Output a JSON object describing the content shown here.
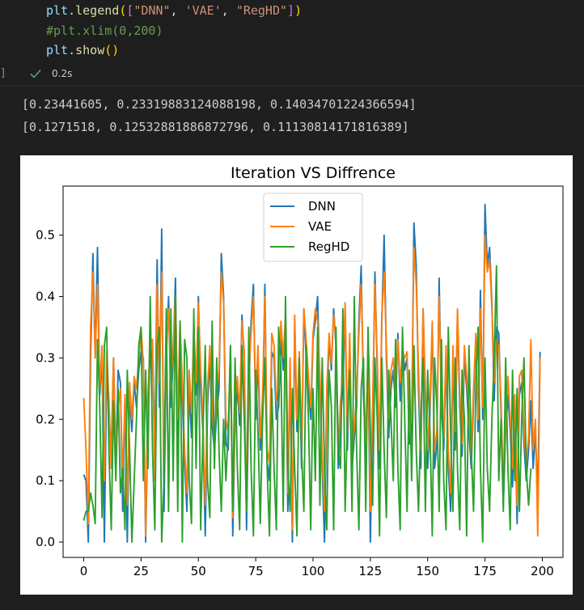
{
  "code": {
    "line1": {
      "obj": "plt",
      "dot": ".",
      "fn": "legend",
      "open_p": "(",
      "open_b": "[",
      "s1": "\"DNN\"",
      "c1": ", ",
      "s2": "'VAE'",
      "c2": ", ",
      "s3": "\"RegHD\"",
      "close_b": "]",
      "close_p": ")"
    },
    "line2": "#plt.xlim(0,200)",
    "line3": {
      "obj": "plt",
      "dot": ".",
      "fn": "show",
      "parens": "()"
    }
  },
  "cell_status": {
    "bracket": "]",
    "time": "0.2s"
  },
  "output": {
    "line1": "[0.23441605, 0.23319883124088198, 0.14034701224366594]",
    "line2": "[0.1271518, 0.12532881886872796, 0.11130814171816389]"
  },
  "chart_data": {
    "type": "line",
    "title": "Iteration VS Diffrence",
    "xlabel": "",
    "ylabel": "",
    "xlim": [
      -9,
      209
    ],
    "ylim": [
      -0.025,
      0.58
    ],
    "xticks": [
      0,
      25,
      50,
      75,
      100,
      125,
      150,
      175,
      200
    ],
    "yticks": [
      0.0,
      0.1,
      0.2,
      0.3,
      0.4,
      0.5
    ],
    "ytick_labels": [
      "0.0",
      "0.1",
      "0.2",
      "0.3",
      "0.4",
      "0.5"
    ],
    "legend_position": "upper center",
    "grid": false,
    "series": [
      {
        "name": "DNN",
        "color": "#1f77b4",
        "values": [
          0.11,
          0.1,
          0.0,
          0.3,
          0.47,
          0.3,
          0.48,
          0.24,
          0.3,
          0.0,
          0.28,
          0.2,
          0.15,
          0.3,
          0.12,
          0.28,
          0.26,
          0.05,
          0.24,
          0.0,
          0.24,
          0.18,
          0.26,
          0.22,
          0.28,
          0.31,
          0.3,
          0.0,
          0.2,
          0.32,
          0.3,
          0.15,
          0.46,
          0.22,
          0.51,
          0.05,
          0.3,
          0.4,
          0.22,
          0.3,
          0.43,
          0.15,
          0.35,
          0.23,
          0.13,
          0.05,
          0.25,
          0.17,
          0.35,
          0.24,
          0.4,
          0.25,
          0.18,
          0.01,
          0.22,
          0.3,
          0.19,
          0.15,
          0.21,
          0.25,
          0.47,
          0.4,
          0.16,
          0.15,
          0.32,
          0.01,
          0.2,
          0.25,
          0.19,
          0.37,
          0.3,
          0.02,
          0.25,
          0.36,
          0.42,
          0.2,
          0.3,
          0.15,
          0.2,
          0.42,
          0.13,
          0.1,
          0.31,
          0.3,
          0.2,
          0.22,
          0.33,
          0.28,
          0.36,
          0.05,
          0.28,
          0.0,
          0.35,
          0.18,
          0.29,
          0.12,
          0.38,
          0.3,
          0.25,
          0.2,
          0.33,
          0.36,
          0.4,
          0.25,
          0.12,
          0.0,
          0.22,
          0.33,
          0.28,
          0.38,
          0.32,
          0.12,
          0.2,
          0.25,
          0.38,
          0.15,
          0.32,
          0.12,
          0.17,
          0.22,
          0.36,
          0.45,
          0.24,
          0.14,
          0.3,
          0.0,
          0.2,
          0.44,
          0.28,
          0.12,
          0.36,
          0.5,
          0.3,
          0.17,
          0.25,
          0.28,
          0.22,
          0.34,
          0.23,
          0.32,
          0.28,
          0.3,
          0.16,
          0.18,
          0.52,
          0.45,
          0.25,
          0.12,
          0.38,
          0.23,
          0.12,
          0.21,
          0.35,
          0.12,
          0.16,
          0.43,
          0.22,
          0.15,
          0.3,
          0.12,
          0.05,
          0.3,
          0.15,
          0.37,
          0.22,
          0.14,
          0.3,
          0.25,
          0.18,
          0.12,
          0.23,
          0.33,
          0.18,
          0.41,
          0.2,
          0.55,
          0.45,
          0.48,
          0.39,
          0.23,
          0.35,
          0.34,
          0.21,
          0.06,
          0.18,
          0.24,
          0.18,
          0.09,
          0.22,
          0.03,
          0.24,
          0.26,
          0.16,
          0.1,
          0.15,
          0.23,
          0.12,
          0.18,
          0.07,
          0.31
        ]
      },
      {
        "name": "VAE",
        "color": "#ff7f0e",
        "values": [
          0.235,
          0.15,
          0.03,
          0.35,
          0.44,
          0.3,
          0.42,
          0.25,
          0.32,
          0.1,
          0.31,
          0.23,
          0.12,
          0.3,
          0.15,
          0.22,
          0.25,
          0.1,
          0.24,
          0.06,
          0.26,
          0.2,
          0.27,
          0.25,
          0.3,
          0.35,
          0.29,
          0.01,
          0.24,
          0.33,
          0.33,
          0.1,
          0.42,
          0.26,
          0.44,
          0.12,
          0.32,
          0.38,
          0.25,
          0.32,
          0.4,
          0.2,
          0.36,
          0.26,
          0.15,
          0.08,
          0.28,
          0.21,
          0.35,
          0.26,
          0.39,
          0.28,
          0.2,
          0.06,
          0.25,
          0.32,
          0.22,
          0.16,
          0.24,
          0.28,
          0.44,
          0.39,
          0.2,
          0.18,
          0.3,
          0.04,
          0.22,
          0.27,
          0.21,
          0.36,
          0.31,
          0.05,
          0.28,
          0.34,
          0.4,
          0.23,
          0.32,
          0.17,
          0.24,
          0.4,
          0.15,
          0.13,
          0.34,
          0.32,
          0.23,
          0.25,
          0.36,
          0.3,
          0.37,
          0.08,
          0.3,
          0.02,
          0.37,
          0.2,
          0.31,
          0.15,
          0.38,
          0.33,
          0.27,
          0.22,
          0.34,
          0.38,
          0.36,
          0.27,
          0.14,
          0.05,
          0.25,
          0.34,
          0.29,
          0.37,
          0.33,
          0.15,
          0.23,
          0.27,
          0.39,
          0.18,
          0.34,
          0.14,
          0.19,
          0.24,
          0.34,
          0.42,
          0.27,
          0.16,
          0.32,
          0.05,
          0.23,
          0.42,
          0.3,
          0.15,
          0.37,
          0.44,
          0.32,
          0.2,
          0.28,
          0.3,
          0.24,
          0.33,
          0.26,
          0.31,
          0.3,
          0.31,
          0.18,
          0.2,
          0.48,
          0.42,
          0.28,
          0.15,
          0.38,
          0.25,
          0.15,
          0.23,
          0.36,
          0.15,
          0.18,
          0.4,
          0.24,
          0.17,
          0.32,
          0.15,
          0.08,
          0.32,
          0.18,
          0.38,
          0.24,
          0.16,
          0.32,
          0.27,
          0.21,
          0.14,
          0.25,
          0.34,
          0.2,
          0.38,
          0.22,
          0.5,
          0.44,
          0.46,
          0.38,
          0.26,
          0.33,
          0.32,
          0.23,
          0.08,
          0.2,
          0.27,
          0.2,
          0.12,
          0.24,
          0.06,
          0.27,
          0.28,
          0.18,
          0.13,
          0.17,
          0.33,
          0.15,
          0.2,
          0.01,
          0.3
        ]
      },
      {
        "name": "RegHD",
        "color": "#2ca02c",
        "values": [
          0.035,
          0.05,
          0.05,
          0.08,
          0.06,
          0.03,
          0.33,
          0.22,
          0.04,
          0.32,
          0.35,
          0.15,
          0.02,
          0.23,
          0.1,
          0.25,
          0.08,
          0.12,
          0.02,
          0.28,
          0.15,
          0.0,
          0.1,
          0.2,
          0.32,
          0.35,
          0.1,
          0.28,
          0.12,
          0.4,
          0.15,
          0.02,
          0.32,
          0.35,
          0.0,
          0.1,
          0.38,
          0.05,
          0.38,
          0.1,
          0.4,
          0.05,
          0.36,
          0.0,
          0.33,
          0.3,
          0.1,
          0.03,
          0.38,
          0.12,
          0.35,
          0.02,
          0.18,
          0.32,
          0.1,
          0.04,
          0.36,
          0.12,
          0.3,
          0.15,
          0.05,
          0.2,
          0.1,
          0.18,
          0.32,
          0.05,
          0.3,
          0.12,
          0.02,
          0.32,
          0.2,
          0.05,
          0.35,
          0.12,
          0.01,
          0.28,
          0.18,
          0.03,
          0.2,
          0.3,
          0.12,
          0.01,
          0.25,
          0.12,
          0.02,
          0.35,
          0.28,
          0.05,
          0.4,
          0.12,
          0.05,
          0.25,
          0.12,
          0.01,
          0.3,
          0.15,
          0.05,
          0.32,
          0.2,
          0.02,
          0.25,
          0.1,
          0.35,
          0.06,
          0.3,
          0.12,
          0.02,
          0.28,
          0.22,
          0.02,
          0.35,
          0.15,
          0.12,
          0.38,
          0.05,
          0.2,
          0.28,
          0.05,
          0.4,
          0.15,
          0.02,
          0.25,
          0.3,
          0.05,
          0.35,
          0.18,
          0.06,
          0.3,
          0.2,
          0.01,
          0.3,
          0.15,
          0.04,
          0.28,
          0.2,
          0.1,
          0.33,
          0.12,
          0.02,
          0.35,
          0.2,
          0.05,
          0.28,
          0.1,
          0.32,
          0.15,
          0.05,
          0.2,
          0.3,
          0.05,
          0.28,
          0.18,
          0.01,
          0.3,
          0.22,
          0.05,
          0.33,
          0.1,
          0.02,
          0.35,
          0.18,
          0.05,
          0.3,
          0.12,
          0.02,
          0.28,
          0.2,
          0.01,
          0.32,
          0.15,
          0.05,
          0.25,
          0.35,
          0.12,
          0.0,
          0.3,
          0.12,
          0.05,
          0.2,
          0.3,
          0.45,
          0.1,
          0.2,
          0.05,
          0.3,
          0.12,
          0.02,
          0.28,
          0.1,
          0.25,
          0.05,
          0.2,
          0.3,
          0.12,
          0.06,
          0.12
        ]
      }
    ]
  }
}
